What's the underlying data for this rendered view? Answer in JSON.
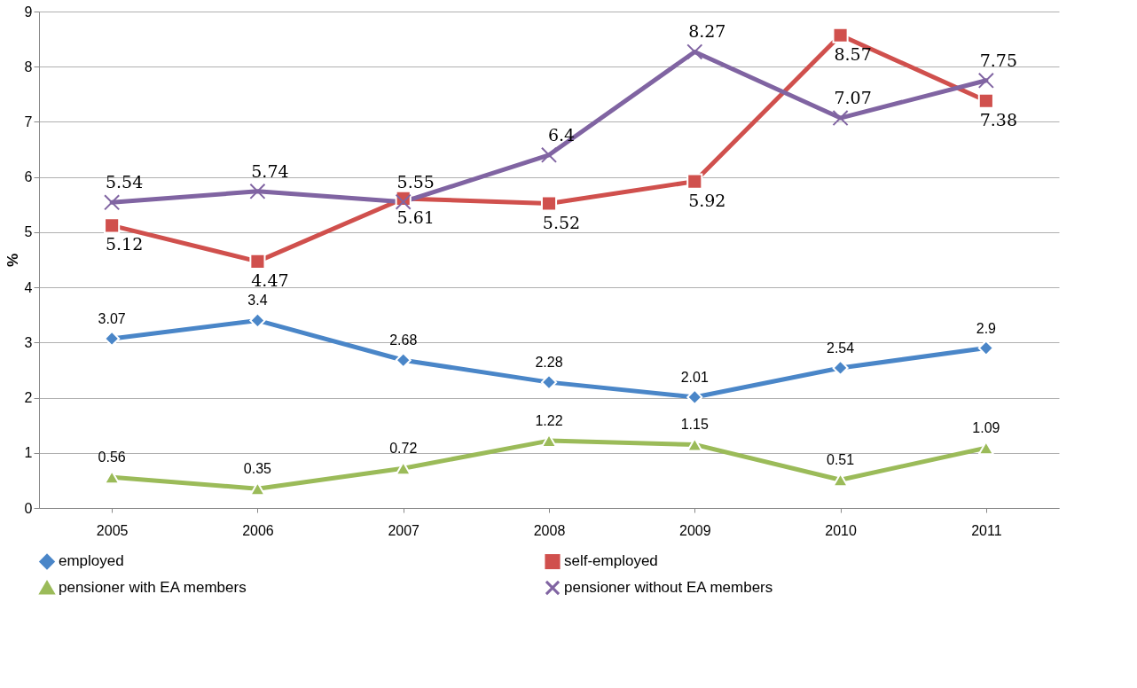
{
  "chart_data": {
    "type": "line",
    "categories": [
      "2005",
      "2006",
      "2007",
      "2008",
      "2009",
      "2010",
      "2011"
    ],
    "series": [
      {
        "name": "employed",
        "color": "#4a86c8",
        "marker": "diamond",
        "values": [
          3.07,
          3.4,
          2.68,
          2.28,
          2.01,
          2.54,
          2.9
        ]
      },
      {
        "name": "self-employed",
        "color": "#d0504d",
        "marker": "square",
        "values": [
          5.12,
          4.47,
          5.61,
          5.52,
          5.92,
          8.57,
          7.38
        ]
      },
      {
        "name": "pensioner with EA members",
        "color": "#9bbb59",
        "marker": "triangle",
        "values": [
          0.56,
          0.35,
          0.72,
          1.22,
          1.15,
          0.51,
          1.09
        ]
      },
      {
        "name": "pensioner without EA members",
        "color": "#8064a2",
        "marker": "cross",
        "values": [
          5.54,
          5.74,
          5.55,
          6.4,
          8.27,
          7.07,
          7.75
        ]
      }
    ],
    "ylabel": "%",
    "ylim": [
      0,
      9
    ],
    "yticks": [
      0,
      1,
      2,
      3,
      4,
      5,
      6,
      7,
      8,
      9
    ],
    "grid": "y",
    "legend": "bottom",
    "data_labels": true,
    "line_style": "solid"
  }
}
